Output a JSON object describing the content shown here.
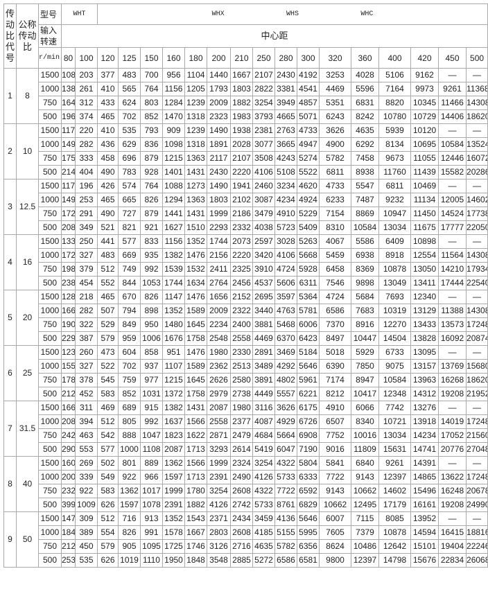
{
  "header": {
    "col_ratio_code": "传动比代号",
    "col_nominal_ratio": "公称传动比",
    "model_label": "型号",
    "model_wht": "WHT",
    "model_whx": "WHX",
    "model_whs": "WHS",
    "model_whc": "WHC",
    "input_speed_label": "输入转速",
    "center_distance_label": "中心距",
    "speed_unit": "r/min",
    "center_distances": [
      "80",
      "100",
      "120",
      "125",
      "150",
      "160",
      "180",
      "200",
      "210",
      "250",
      "280",
      "300",
      "320",
      "360",
      "400",
      "420",
      "450",
      "500"
    ]
  },
  "groups": [
    {
      "code": "1",
      "ratio": "8",
      "rows": [
        {
          "speed": "1500",
          "values": [
            "108",
            "203",
            "377",
            "483",
            "700",
            "956",
            "1104",
            "1440",
            "1667",
            "2107",
            "2430",
            "4192",
            "3253",
            "4028",
            "5106",
            "9162",
            "—",
            "—"
          ]
        },
        {
          "speed": "1000",
          "values": [
            "138",
            "261",
            "410",
            "565",
            "764",
            "1156",
            "1205",
            "1793",
            "1803",
            "2822",
            "3381",
            "4541",
            "4469",
            "5596",
            "7164",
            "9973",
            "9261",
            "11368"
          ]
        },
        {
          "speed": "750",
          "values": [
            "164",
            "312",
            "433",
            "624",
            "803",
            "1284",
            "1239",
            "2009",
            "1882",
            "3254",
            "3949",
            "4857",
            "5351",
            "6831",
            "8820",
            "10345",
            "11466",
            "14308"
          ]
        },
        {
          "speed": "500",
          "values": [
            "196",
            "374",
            "465",
            "702",
            "852",
            "1470",
            "1318",
            "2323",
            "1983",
            "3793",
            "4665",
            "5071",
            "6243",
            "8242",
            "10780",
            "10729",
            "14406",
            "18620"
          ]
        }
      ]
    },
    {
      "code": "2",
      "ratio": "10",
      "rows": [
        {
          "speed": "1500",
          "values": [
            "117",
            "220",
            "410",
            "535",
            "793",
            "909",
            "1239",
            "1490",
            "1938",
            "2381",
            "2763",
            "4733",
            "3626",
            "4635",
            "5939",
            "10120",
            "—",
            "—"
          ]
        },
        {
          "speed": "1000",
          "values": [
            "149",
            "282",
            "436",
            "629",
            "836",
            "1098",
            "1318",
            "1891",
            "2028",
            "3077",
            "3665",
            "4947",
            "4900",
            "6292",
            "8134",
            "10695",
            "10584",
            "13524"
          ]
        },
        {
          "speed": "750",
          "values": [
            "175",
            "333",
            "458",
            "696",
            "879",
            "1215",
            "1363",
            "2117",
            "2107",
            "3508",
            "4243",
            "5274",
            "5782",
            "7458",
            "9673",
            "11055",
            "12446",
            "16072"
          ]
        },
        {
          "speed": "500",
          "values": [
            "214",
            "404",
            "490",
            "783",
            "928",
            "1401",
            "1431",
            "2430",
            "2220",
            "4106",
            "5108",
            "5522",
            "6811",
            "8938",
            "11760",
            "11439",
            "15582",
            "20286"
          ]
        }
      ]
    },
    {
      "code": "3",
      "ratio": "12.5",
      "rows": [
        {
          "speed": "1500",
          "values": [
            "117",
            "196",
            "426",
            "574",
            "764",
            "1088",
            "1273",
            "1490",
            "1941",
            "2460",
            "3234",
            "4620",
            "4733",
            "5547",
            "6811",
            "10469",
            "—",
            "—"
          ]
        },
        {
          "speed": "1000",
          "values": [
            "149",
            "253",
            "465",
            "665",
            "826",
            "1294",
            "1363",
            "1803",
            "2102",
            "3087",
            "4234",
            "4924",
            "6233",
            "7487",
            "9232",
            "11134",
            "12005",
            "14602"
          ]
        },
        {
          "speed": "750",
          "values": [
            "172",
            "291",
            "490",
            "727",
            "879",
            "1441",
            "1431",
            "1999",
            "2186",
            "3479",
            "4910",
            "5229",
            "7154",
            "8869",
            "10947",
            "11450",
            "14524",
            "17738"
          ]
        },
        {
          "speed": "500",
          "values": [
            "208",
            "349",
            "521",
            "821",
            "921",
            "1627",
            "1510",
            "2293",
            "2332",
            "4038",
            "5723",
            "5409",
            "8310",
            "10584",
            "13034",
            "11675",
            "17777",
            "22050"
          ]
        }
      ]
    },
    {
      "code": "4",
      "ratio": "16",
      "rows": [
        {
          "speed": "1500",
          "values": [
            "133",
            "250",
            "441",
            "577",
            "833",
            "1156",
            "1352",
            "1744",
            "2073",
            "2597",
            "3028",
            "5263",
            "4067",
            "5586",
            "6409",
            "10898",
            "—",
            "—"
          ]
        },
        {
          "speed": "1000",
          "values": [
            "172",
            "327",
            "483",
            "669",
            "935",
            "1382",
            "1476",
            "2156",
            "2220",
            "3420",
            "4106",
            "5668",
            "5459",
            "6938",
            "8918",
            "12554",
            "11564",
            "14308"
          ]
        },
        {
          "speed": "750",
          "values": [
            "198",
            "379",
            "512",
            "749",
            "992",
            "1539",
            "1532",
            "2411",
            "2325",
            "3910",
            "4724",
            "5928",
            "6458",
            "8369",
            "10878",
            "13050",
            "14210",
            "17934"
          ]
        },
        {
          "speed": "500",
          "values": [
            "238",
            "454",
            "552",
            "844",
            "1053",
            "1744",
            "1634",
            "2764",
            "2456",
            "4537",
            "5606",
            "6311",
            "7546",
            "9898",
            "13049",
            "13411",
            "17444",
            "22540"
          ]
        }
      ]
    },
    {
      "code": "5",
      "ratio": "20",
      "rows": [
        {
          "speed": "1500",
          "values": [
            "128",
            "218",
            "465",
            "670",
            "826",
            "1147",
            "1476",
            "1656",
            "2152",
            "2695",
            "3597",
            "5364",
            "4724",
            "5684",
            "7693",
            "12340",
            "—",
            "—"
          ]
        },
        {
          "speed": "1000",
          "values": [
            "166",
            "282",
            "507",
            "794",
            "898",
            "1352",
            "1589",
            "2009",
            "2322",
            "3440",
            "4763",
            "5781",
            "6586",
            "7683",
            "10319",
            "13129",
            "11388",
            "14308"
          ]
        },
        {
          "speed": "750",
          "values": [
            "190",
            "322",
            "529",
            "849",
            "950",
            "1480",
            "1645",
            "2234",
            "2400",
            "3881",
            "5468",
            "6006",
            "7370",
            "8916",
            "12270",
            "13433",
            "13573",
            "17248"
          ]
        },
        {
          "speed": "500",
          "values": [
            "229",
            "387",
            "579",
            "959",
            "1006",
            "1676",
            "1758",
            "2548",
            "2558",
            "4469",
            "6370",
            "6423",
            "8497",
            "10447",
            "14504",
            "13828",
            "16092",
            "20874"
          ]
        }
      ]
    },
    {
      "code": "6",
      "ratio": "25",
      "rows": [
        {
          "speed": "1500",
          "values": [
            "123",
            "260",
            "473",
            "604",
            "858",
            "951",
            "1476",
            "1980",
            "2330",
            "2891",
            "3469",
            "5184",
            "5018",
            "5929",
            "6733",
            "13095",
            "—",
            "—"
          ]
        },
        {
          "speed": "1000",
          "values": [
            "155",
            "327",
            "522",
            "702",
            "937",
            "1107",
            "1589",
            "2362",
            "2513",
            "3489",
            "4292",
            "5646",
            "6390",
            "7850",
            "9075",
            "13157",
            "13769",
            "15680"
          ]
        },
        {
          "speed": "750",
          "values": [
            "178",
            "378",
            "545",
            "759",
            "977",
            "1215",
            "1645",
            "2626",
            "2580",
            "3891",
            "4802",
            "5961",
            "7174",
            "8947",
            "10584",
            "13963",
            "16268",
            "18620"
          ]
        },
        {
          "speed": "500",
          "values": [
            "212",
            "452",
            "583",
            "852",
            "1031",
            "1372",
            "1758",
            "2979",
            "2738",
            "4449",
            "5557",
            "6221",
            "8212",
            "10417",
            "12348",
            "14312",
            "19208",
            "21952"
          ]
        }
      ]
    },
    {
      "code": "7",
      "ratio": "31.5",
      "rows": [
        {
          "speed": "1500",
          "values": [
            "166",
            "311",
            "469",
            "689",
            "915",
            "1382",
            "1431",
            "2087",
            "1980",
            "3116",
            "3626",
            "6175",
            "4910",
            "6066",
            "7742",
            "13276",
            "—",
            "—"
          ]
        },
        {
          "speed": "1000",
          "values": [
            "208",
            "394",
            "512",
            "805",
            "992",
            "1637",
            "1566",
            "2558",
            "2377",
            "4087",
            "4929",
            "6726",
            "6507",
            "8340",
            "10721",
            "13918",
            "14019",
            "17248"
          ]
        },
        {
          "speed": "750",
          "values": [
            "242",
            "463",
            "542",
            "888",
            "1047",
            "1823",
            "1622",
            "2871",
            "2479",
            "4684",
            "5664",
            "6908",
            "7752",
            "10016",
            "13034",
            "14234",
            "17052",
            "21560"
          ]
        },
        {
          "speed": "500",
          "values": [
            "290",
            "553",
            "577",
            "1000",
            "1108",
            "2087",
            "1713",
            "3293",
            "2614",
            "5419",
            "6047",
            "7190",
            "9016",
            "11809",
            "15631",
            "14741",
            "20776",
            "27048"
          ]
        }
      ]
    },
    {
      "code": "8",
      "ratio": "40",
      "rows": [
        {
          "speed": "1500",
          "values": [
            "160",
            "269",
            "502",
            "801",
            "889",
            "1362",
            "1566",
            "1999",
            "2324",
            "3254",
            "4322",
            "5804",
            "5841",
            "6840",
            "9261",
            "14391",
            "—",
            "—"
          ]
        },
        {
          "speed": "1000",
          "values": [
            "200",
            "339",
            "549",
            "922",
            "966",
            "1597",
            "1713",
            "2391",
            "2490",
            "4126",
            "5733",
            "6333",
            "7722",
            "9143",
            "12397",
            "14865",
            "13622",
            "17248"
          ]
        },
        {
          "speed": "750",
          "values": [
            "232",
            "922",
            "583",
            "1362",
            "1017",
            "1999",
            "1780",
            "3254",
            "2608",
            "4322",
            "7722",
            "6592",
            "9143",
            "10662",
            "14602",
            "15496",
            "16248",
            "20678"
          ]
        },
        {
          "speed": "500",
          "values": [
            "399",
            "1009",
            "626",
            "1597",
            "1078",
            "2391",
            "1882",
            "4126",
            "2742",
            "5733",
            "8761",
            "6829",
            "10662",
            "12495",
            "17179",
            "16161",
            "19208",
            "24990"
          ]
        }
      ]
    },
    {
      "code": "9",
      "ratio": "50",
      "rows": [
        {
          "speed": "1500",
          "values": [
            "147",
            "309",
            "512",
            "716",
            "913",
            "1352",
            "1543",
            "2371",
            "2434",
            "3459",
            "4136",
            "5646",
            "6007",
            "7115",
            "8085",
            "13952",
            "—",
            "—"
          ]
        },
        {
          "speed": "1000",
          "values": [
            "184",
            "389",
            "554",
            "826",
            "991",
            "1578",
            "1667",
            "2803",
            "2608",
            "4185",
            "5155",
            "5995",
            "7605",
            "7379",
            "10878",
            "14594",
            "16415",
            "18816"
          ]
        },
        {
          "speed": "750",
          "values": [
            "212",
            "450",
            "579",
            "905",
            "1095",
            "1725",
            "1746",
            "3126",
            "2716",
            "4635",
            "5782",
            "6356",
            "8624",
            "10486",
            "12642",
            "15101",
            "19404",
            "22246"
          ]
        },
        {
          "speed": "500",
          "values": [
            "253",
            "535",
            "626",
            "1019",
            "1110",
            "1950",
            "1848",
            "3548",
            "2885",
            "5272",
            "6586",
            "6581",
            "9800",
            "12397",
            "14798",
            "15676",
            "22834",
            "26068"
          ]
        }
      ]
    }
  ]
}
